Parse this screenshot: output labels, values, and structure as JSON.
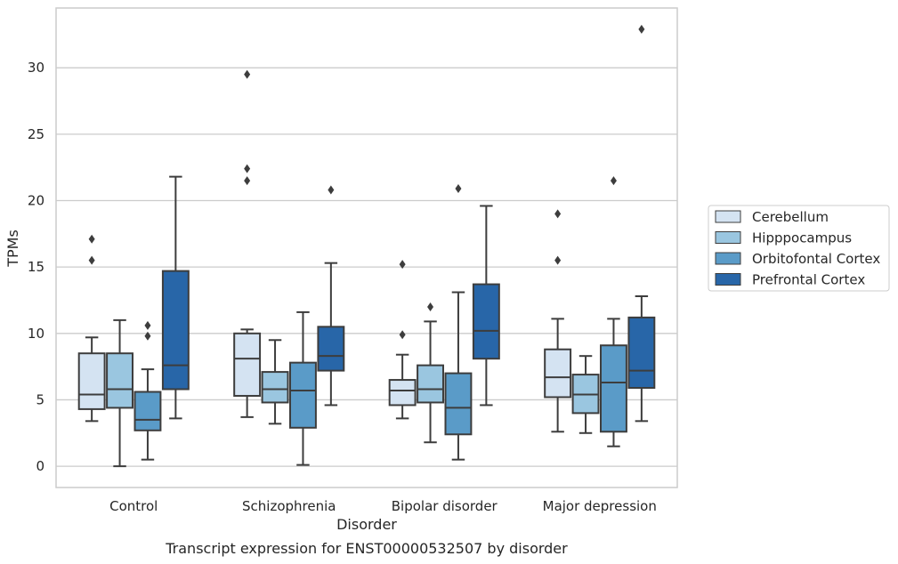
{
  "caption": "Transcript expression for ENST00000532507 by disorder",
  "chart_data": {
    "type": "box",
    "xlabel": "Disorder",
    "ylabel": "TPMs",
    "ylim": [
      -1.6,
      34.5
    ],
    "yticks": [
      0,
      5,
      10,
      15,
      20,
      25,
      30
    ],
    "grid": true,
    "legend_position": "right",
    "categories": [
      "Control",
      "Schizophrenia",
      "Bipolar disorder",
      "Major depression"
    ],
    "series": [
      {
        "name": "Cerebellum",
        "color": "#d4e3f2",
        "boxes": [
          {
            "whisker_low": 3.4,
            "q1": 4.3,
            "median": 5.4,
            "q3": 8.5,
            "whisker_high": 9.7,
            "outliers": [
              15.5,
              17.1
            ]
          },
          {
            "whisker_low": 3.7,
            "q1": 5.3,
            "median": 8.1,
            "q3": 10.0,
            "whisker_high": 10.3,
            "outliers": [
              21.5,
              22.4,
              29.5
            ]
          },
          {
            "whisker_low": 3.6,
            "q1": 4.6,
            "median": 5.7,
            "q3": 6.5,
            "whisker_high": 8.4,
            "outliers": [
              9.9,
              15.2
            ]
          },
          {
            "whisker_low": 2.6,
            "q1": 5.2,
            "median": 6.7,
            "q3": 8.8,
            "whisker_high": 11.1,
            "outliers": [
              15.5,
              19.0
            ]
          }
        ]
      },
      {
        "name": "Hipppocampus",
        "color": "#9ac6e0",
        "boxes": [
          {
            "whisker_low": 0.0,
            "q1": 4.4,
            "median": 5.8,
            "q3": 8.5,
            "whisker_high": 11.0,
            "outliers": []
          },
          {
            "whisker_low": 3.2,
            "q1": 4.8,
            "median": 5.8,
            "q3": 7.1,
            "whisker_high": 9.5,
            "outliers": []
          },
          {
            "whisker_low": 1.8,
            "q1": 4.8,
            "median": 5.8,
            "q3": 7.6,
            "whisker_high": 10.9,
            "outliers": [
              12.0
            ]
          },
          {
            "whisker_low": 2.5,
            "q1": 4.0,
            "median": 5.4,
            "q3": 6.9,
            "whisker_high": 8.3,
            "outliers": []
          }
        ]
      },
      {
        "name": "Orbitofontal Cortex",
        "color": "#5a9bc8",
        "boxes": [
          {
            "whisker_low": 0.5,
            "q1": 2.7,
            "median": 3.5,
            "q3": 5.6,
            "whisker_high": 7.3,
            "outliers": [
              9.8,
              10.6
            ]
          },
          {
            "whisker_low": 0.1,
            "q1": 2.9,
            "median": 5.7,
            "q3": 7.8,
            "whisker_high": 11.6,
            "outliers": []
          },
          {
            "whisker_low": 0.5,
            "q1": 2.4,
            "median": 4.4,
            "q3": 7.0,
            "whisker_high": 13.1,
            "outliers": [
              20.9
            ]
          },
          {
            "whisker_low": 1.5,
            "q1": 2.6,
            "median": 6.3,
            "q3": 9.1,
            "whisker_high": 11.1,
            "outliers": [
              21.5
            ]
          }
        ]
      },
      {
        "name": "Prefrontal Cortex",
        "color": "#2866a8",
        "boxes": [
          {
            "whisker_low": 3.6,
            "q1": 5.8,
            "median": 7.6,
            "q3": 14.7,
            "whisker_high": 21.8,
            "outliers": []
          },
          {
            "whisker_low": 4.6,
            "q1": 7.2,
            "median": 8.3,
            "q3": 10.5,
            "whisker_high": 15.3,
            "outliers": [
              20.8
            ]
          },
          {
            "whisker_low": 4.6,
            "q1": 8.1,
            "median": 10.2,
            "q3": 13.7,
            "whisker_high": 19.6,
            "outliers": []
          },
          {
            "whisker_low": 3.4,
            "q1": 5.9,
            "median": 7.2,
            "q3": 11.2,
            "whisker_high": 12.8,
            "outliers": [
              32.9
            ]
          }
        ]
      }
    ]
  }
}
